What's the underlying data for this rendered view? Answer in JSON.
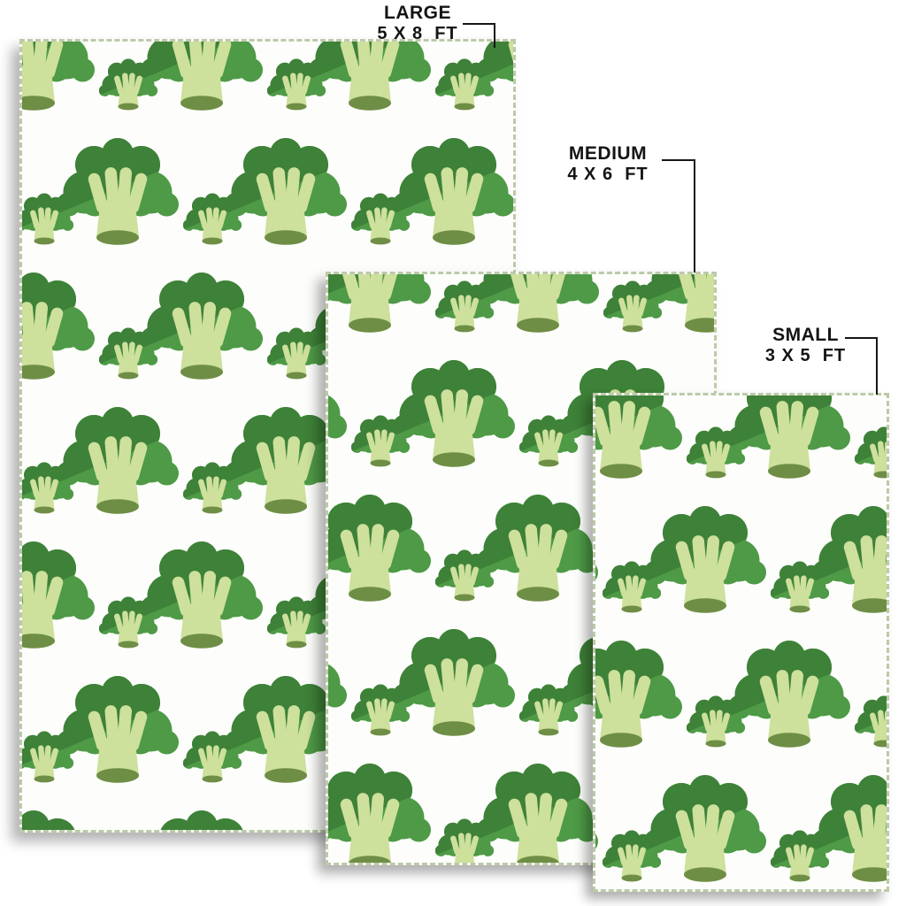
{
  "page": {
    "background": "#ffffff",
    "description": "Rug size comparison mockup with broccoli pattern"
  },
  "rugs": [
    {
      "id": "large",
      "label": "LARGE",
      "dimensions": "5 X 8  FT",
      "pattern_icon": "broccoli-icon"
    },
    {
      "id": "medium",
      "label": "MEDIUM",
      "dimensions": "4 X 6  FT",
      "pattern_icon": "broccoli-icon"
    },
    {
      "id": "small",
      "label": "SMALL",
      "dimensions": "3 X 5  FT",
      "pattern_icon": "broccoli-icon"
    }
  ],
  "icons": {
    "pattern_motif": "broccoli-icon"
  },
  "colors": {
    "broccoli_head": "#4e9a46",
    "broccoli_shade": "#3e8138",
    "broccoli_stalk": "#cde09c",
    "broccoli_stem_end": "#6f8e45",
    "rug_background": "#fdfefc",
    "rug_edge": "#bccaa8",
    "label_text": "#141414",
    "pointer_line": "#161616",
    "page_background": "#ffffff"
  }
}
